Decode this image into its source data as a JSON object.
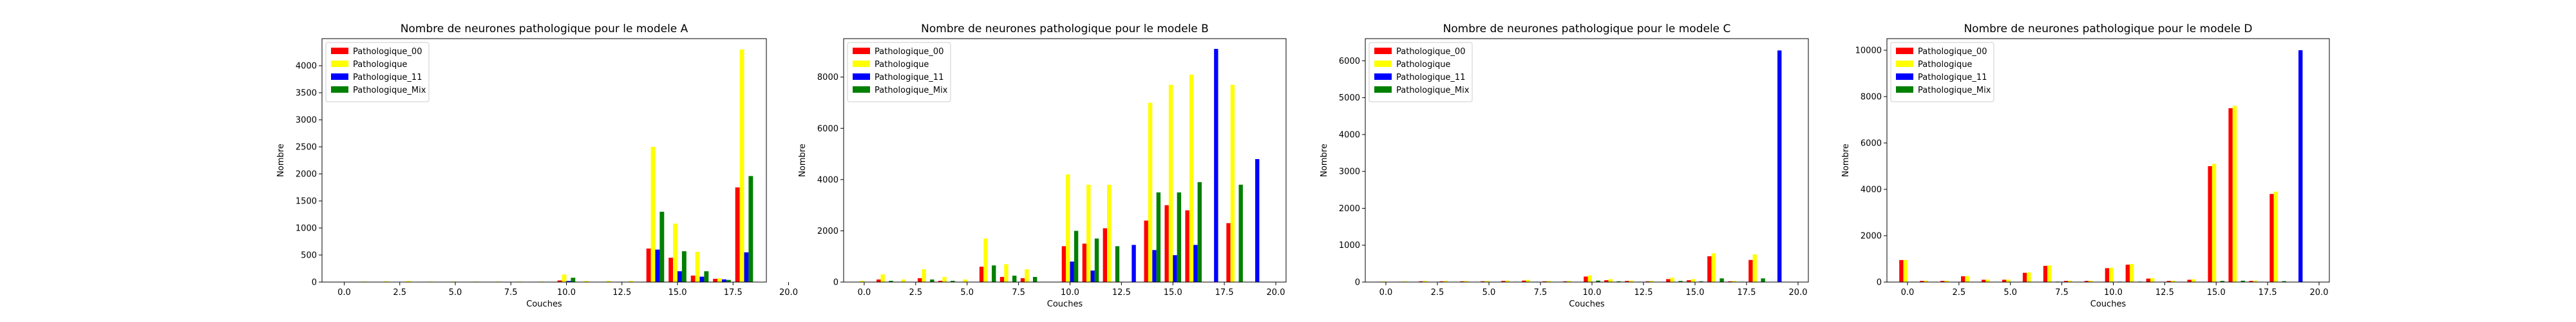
{
  "chart_data": [
    {
      "type": "bar",
      "title": "Nombre de neurones pathologique pour le modele A",
      "xlabel": "Couches",
      "ylabel": "Nombre",
      "xlim": [
        -1,
        19
      ],
      "ylim": [
        0,
        4500
      ],
      "xticks": [
        0.0,
        2.5,
        5.0,
        7.5,
        10.0,
        12.5,
        15.0,
        17.5,
        20.0
      ],
      "xtick_labels": [
        "0.0",
        "2.5",
        "5.0",
        "7.5",
        "10.0",
        "12.5",
        "15.0",
        "17.5",
        "20.0"
      ],
      "yticks": [
        0,
        500,
        1000,
        1500,
        2000,
        2500,
        3000,
        3500,
        4000
      ],
      "ytick_labels": [
        "0",
        "500",
        "1000",
        "1500",
        "2000",
        "2500",
        "3000",
        "3500",
        "4000"
      ],
      "legend_position": "top-left",
      "x": [
        0,
        1,
        2,
        3,
        4,
        5,
        6,
        7,
        8,
        9,
        10,
        11,
        12,
        13,
        14,
        15,
        16,
        17,
        18
      ],
      "series": [
        {
          "name": "Pathologique_00",
          "color": "#ff0000",
          "values": [
            0,
            0,
            0,
            0,
            0,
            0,
            0,
            0,
            0,
            0,
            30,
            0,
            0,
            0,
            620,
            450,
            120,
            60,
            1750
          ]
        },
        {
          "name": "Pathologique",
          "color": "#ffff00",
          "values": [
            5,
            10,
            15,
            20,
            10,
            10,
            10,
            10,
            10,
            10,
            140,
            20,
            20,
            20,
            2500,
            1080,
            560,
            70,
            4300
          ]
        },
        {
          "name": "Pathologique_11",
          "color": "#0000ff",
          "values": [
            0,
            0,
            0,
            0,
            0,
            0,
            0,
            0,
            0,
            0,
            20,
            0,
            0,
            0,
            600,
            200,
            100,
            50,
            550
          ]
        },
        {
          "name": "Pathologique_Mix",
          "color": "#008000",
          "values": [
            0,
            0,
            0,
            0,
            0,
            0,
            0,
            0,
            0,
            0,
            80,
            0,
            0,
            0,
            1300,
            570,
            200,
            40,
            1960
          ]
        }
      ]
    },
    {
      "type": "bar",
      "title": "Nombre de neurones pathologique pour le modele B",
      "xlabel": "Couches",
      "ylabel": "Nombre",
      "xlim": [
        -1,
        20.5
      ],
      "ylim": [
        0,
        9500
      ],
      "xticks": [
        0.0,
        2.5,
        5.0,
        7.5,
        10.0,
        12.5,
        15.0,
        17.5,
        20.0
      ],
      "xtick_labels": [
        "0.0",
        "2.5",
        "5.0",
        "7.5",
        "10.0",
        "12.5",
        "15.0",
        "17.5",
        "20.0"
      ],
      "yticks": [
        0,
        2000,
        4000,
        6000,
        8000
      ],
      "ytick_labels": [
        "0",
        "2000",
        "4000",
        "6000",
        "8000"
      ],
      "legend_position": "top-left",
      "x": [
        0,
        1,
        2,
        3,
        4,
        5,
        6,
        7,
        8,
        9,
        10,
        11,
        12,
        13,
        14,
        15,
        16,
        17,
        18,
        19
      ],
      "series": [
        {
          "name": "Pathologique_00",
          "color": "#ff0000",
          "values": [
            0,
            100,
            0,
            150,
            50,
            0,
            600,
            200,
            150,
            0,
            1400,
            1500,
            2100,
            0,
            2400,
            3000,
            2800,
            0,
            2300,
            0
          ]
        },
        {
          "name": "Pathologique",
          "color": "#ffff00",
          "values": [
            50,
            300,
            100,
            500,
            200,
            100,
            1700,
            700,
            500,
            0,
            4200,
            3800,
            3800,
            0,
            7000,
            7700,
            8100,
            0,
            7700,
            0
          ]
        },
        {
          "name": "Pathologique_11",
          "color": "#0000ff",
          "values": [
            0,
            0,
            0,
            0,
            0,
            0,
            0,
            0,
            0,
            0,
            800,
            450,
            0,
            1450,
            1250,
            1050,
            1450,
            9100,
            0,
            4800
          ]
        },
        {
          "name": "Pathologique_Mix",
          "color": "#008000",
          "values": [
            0,
            50,
            0,
            100,
            50,
            0,
            650,
            250,
            200,
            0,
            2000,
            1700,
            1400,
            0,
            3500,
            3500,
            3900,
            0,
            3800,
            0
          ]
        }
      ]
    },
    {
      "type": "bar",
      "title": "Nombre de neurones pathologique pour le modele C",
      "xlabel": "Couches",
      "ylabel": "Nombre",
      "xlim": [
        -1,
        20.5
      ],
      "ylim": [
        0,
        6600
      ],
      "xticks": [
        0.0,
        2.5,
        5.0,
        7.5,
        10.0,
        12.5,
        15.0,
        17.5,
        20.0
      ],
      "xtick_labels": [
        "0.0",
        "2.5",
        "5.0",
        "7.5",
        "10.0",
        "12.5",
        "15.0",
        "17.5",
        "20.0"
      ],
      "yticks": [
        0,
        1000,
        2000,
        3000,
        4000,
        5000,
        6000
      ],
      "ytick_labels": [
        "0",
        "1000",
        "2000",
        "3000",
        "4000",
        "5000",
        "6000"
      ],
      "legend_position": "top-left",
      "x": [
        0,
        1,
        2,
        3,
        4,
        5,
        6,
        7,
        8,
        9,
        10,
        11,
        12,
        13,
        14,
        15,
        16,
        17,
        18,
        19
      ],
      "series": [
        {
          "name": "Pathologique_00",
          "color": "#ff0000",
          "values": [
            10,
            10,
            20,
            20,
            20,
            20,
            30,
            40,
            20,
            20,
            150,
            50,
            30,
            20,
            80,
            50,
            700,
            20,
            600,
            0
          ]
        },
        {
          "name": "Pathologique",
          "color": "#ffff00",
          "values": [
            20,
            20,
            30,
            30,
            30,
            30,
            40,
            60,
            30,
            30,
            180,
            80,
            40,
            30,
            120,
            80,
            780,
            30,
            750,
            0
          ]
        },
        {
          "name": "Pathologique_11",
          "color": "#0000ff",
          "values": [
            0,
            0,
            0,
            0,
            0,
            0,
            0,
            0,
            0,
            0,
            0,
            0,
            0,
            0,
            0,
            0,
            0,
            0,
            0,
            6280
          ]
        },
        {
          "name": "Pathologique_Mix",
          "color": "#008000",
          "values": [
            5,
            5,
            5,
            5,
            5,
            5,
            10,
            10,
            5,
            5,
            40,
            20,
            10,
            5,
            30,
            20,
            100,
            10,
            100,
            0
          ]
        }
      ]
    },
    {
      "type": "bar",
      "title": "Nombre de neurones pathologique pour le modele D",
      "xlabel": "Couches",
      "ylabel": "Nombre",
      "xlim": [
        -1,
        20.5
      ],
      "ylim": [
        0,
        10500
      ],
      "xticks": [
        0.0,
        2.5,
        5.0,
        7.5,
        10.0,
        12.5,
        15.0,
        17.5,
        20.0
      ],
      "xtick_labels": [
        "0.0",
        "2.5",
        "5.0",
        "7.5",
        "10.0",
        "12.5",
        "15.0",
        "17.5",
        "20.0"
      ],
      "yticks": [
        0,
        2000,
        4000,
        6000,
        8000,
        10000
      ],
      "ytick_labels": [
        "0",
        "2000",
        "4000",
        "6000",
        "8000",
        "10000"
      ],
      "legend_position": "top-left",
      "x": [
        0,
        1,
        2,
        3,
        4,
        5,
        6,
        7,
        8,
        9,
        10,
        11,
        12,
        13,
        14,
        15,
        16,
        17,
        18,
        19
      ],
      "series": [
        {
          "name": "Pathologique_00",
          "color": "#ff0000",
          "values": [
            950,
            50,
            50,
            250,
            100,
            100,
            400,
            700,
            50,
            50,
            600,
            750,
            150,
            50,
            100,
            5000,
            7500,
            50,
            3800,
            0
          ]
        },
        {
          "name": "Pathologique",
          "color": "#ffff00",
          "values": [
            950,
            60,
            60,
            260,
            110,
            110,
            420,
            720,
            60,
            60,
            620,
            780,
            170,
            60,
            120,
            5100,
            7600,
            60,
            3900,
            0
          ]
        },
        {
          "name": "Pathologique_11",
          "color": "#0000ff",
          "values": [
            0,
            0,
            0,
            0,
            0,
            0,
            0,
            0,
            0,
            0,
            0,
            0,
            0,
            0,
            0,
            0,
            0,
            0,
            0,
            10000
          ]
        },
        {
          "name": "Pathologique_Mix",
          "color": "#008000",
          "values": [
            10,
            5,
            5,
            10,
            5,
            5,
            10,
            20,
            5,
            5,
            20,
            20,
            10,
            5,
            10,
            50,
            60,
            5,
            40,
            0
          ]
        }
      ]
    }
  ]
}
